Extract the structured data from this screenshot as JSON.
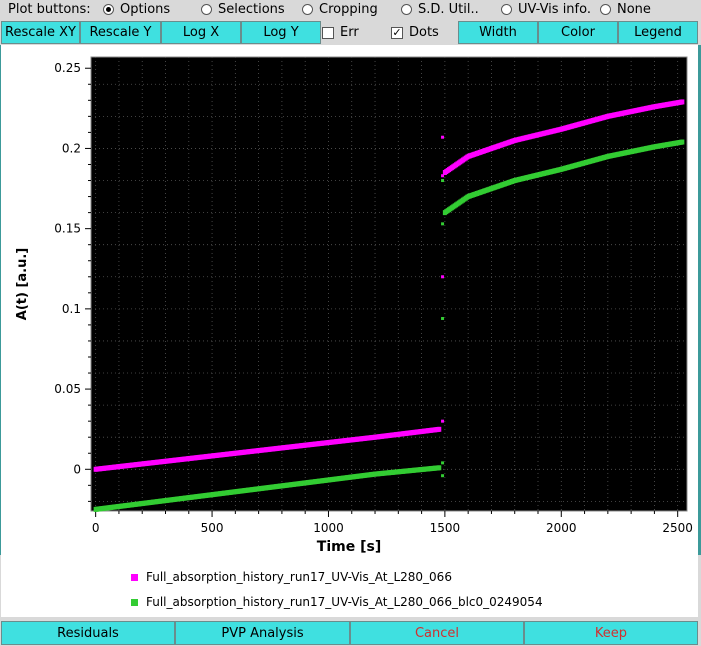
{
  "toolbar": {
    "label": "Plot buttons:",
    "radios": [
      {
        "label": "Options",
        "selected": true
      },
      {
        "label": "Selections",
        "selected": false
      },
      {
        "label": "Cropping",
        "selected": false
      },
      {
        "label": "S.D. Util..",
        "selected": false
      },
      {
        "label": "UV-Vis info.",
        "selected": false
      },
      {
        "label": "None",
        "selected": false
      }
    ]
  },
  "plot_buttons": {
    "rescale_xy": "Rescale XY",
    "rescale_y": "Rescale Y",
    "log_x": "Log X",
    "log_y": "Log Y",
    "err": "Err",
    "err_checked": false,
    "dots": "Dots",
    "dots_checked": true,
    "width": "Width",
    "color": "Color",
    "legend": "Legend"
  },
  "bottom_buttons": {
    "residuals": "Residuals",
    "pvp": "PVP Analysis",
    "cancel": "Cancel",
    "keep": "Keep"
  },
  "colors": {
    "accent": "#3fe0e0",
    "series1": "#ff00ff",
    "series2": "#33cc33",
    "cancel_text": "#d03030"
  },
  "chart_data": {
    "type": "scatter",
    "xlabel": "Time [s]",
    "ylabel": "A(t) [a.u.]",
    "xlim": [
      -20,
      2540
    ],
    "ylim": [
      -0.026,
      0.257
    ],
    "xticks": [
      0,
      500,
      1000,
      1500,
      2000,
      2500
    ],
    "yticks": [
      0,
      0.05,
      0.1,
      0.15,
      0.2,
      0.25
    ],
    "ytick_labels": [
      "0",
      "0.05",
      "0.1",
      "0.15",
      "0.2",
      "0.25"
    ],
    "background": "#000000",
    "grid": true,
    "series": [
      {
        "name": "Full_absorption_history_run17_UV-Vis_At_L280_066",
        "color": "#ff00ff",
        "segments": [
          {
            "x": [
              0,
              300,
              600,
              900,
              1200,
              1480
            ],
            "y": [
              0.0,
              0.005,
              0.01,
              0.015,
              0.02,
              0.025
            ]
          },
          {
            "x": [
              1500,
              1600,
              1800,
              2000,
              2200,
              2400,
              2520
            ],
            "y": [
              0.185,
              0.195,
              0.205,
              0.212,
              0.22,
              0.226,
              0.229
            ]
          }
        ],
        "transition": {
          "x": 1490,
          "y": [
            0.03,
            0.12,
            0.183,
            0.207
          ]
        }
      },
      {
        "name": "Full_absorption_history_run17_UV-Vis_At_L280_066_blc0_0249054",
        "color": "#33cc33",
        "segments": [
          {
            "x": [
              0,
              300,
              600,
              900,
              1200,
              1480
            ],
            "y": [
              -0.025,
              -0.0195,
              -0.014,
              -0.0085,
              -0.003,
              0.001
            ]
          },
          {
            "x": [
              1500,
              1600,
              1800,
              2000,
              2200,
              2400,
              2520
            ],
            "y": [
              0.16,
              0.17,
              0.18,
              0.187,
              0.195,
              0.201,
              0.204
            ]
          }
        ],
        "transition": {
          "x": 1490,
          "y": [
            -0.004,
            0.004,
            0.094,
            0.153,
            0.18
          ]
        }
      }
    ]
  }
}
